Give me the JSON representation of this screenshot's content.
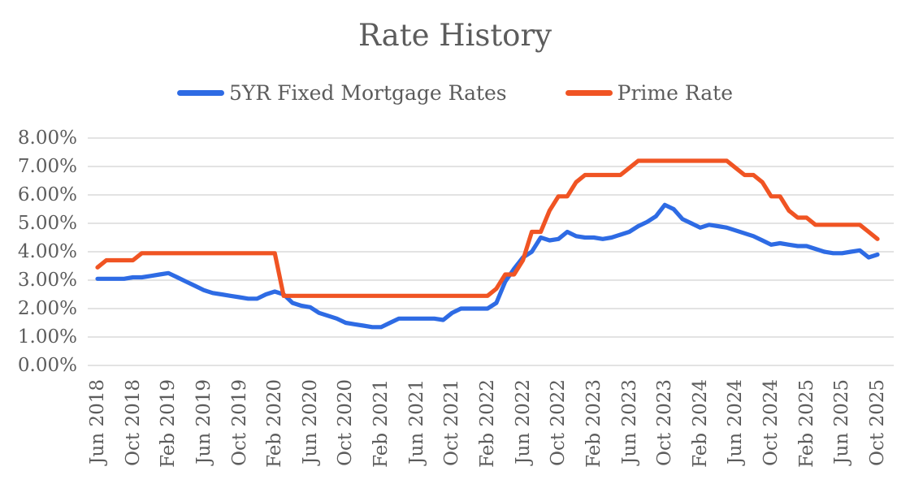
{
  "title": "Rate History",
  "text_color": "#5c5c5c",
  "grid_color": "#dadada",
  "chart_data": {
    "type": "line",
    "title": "Rate History",
    "grid": true,
    "legend_position": "top",
    "ylim": [
      0,
      8
    ],
    "y_ticks": [
      "0.00%",
      "1.00%",
      "2.00%",
      "3.00%",
      "4.00%",
      "5.00%",
      "6.00%",
      "7.00%",
      "8.00%"
    ],
    "tick_every": 4,
    "x": [
      "Jun 2018",
      "Jul 2018",
      "Aug 2018",
      "Sep 2018",
      "Oct 2018",
      "Nov 2018",
      "Dec 2018",
      "Jan 2019",
      "Feb 2019",
      "Mar 2019",
      "Apr 2019",
      "May 2019",
      "Jun 2019",
      "Jul 2019",
      "Aug 2019",
      "Sep 2019",
      "Oct 2019",
      "Nov 2019",
      "Dec 2019",
      "Jan 2020",
      "Feb 2020",
      "Mar 2020",
      "Apr 2020",
      "May 2020",
      "Jun 2020",
      "Jul 2020",
      "Aug 2020",
      "Sep 2020",
      "Oct 2020",
      "Nov 2020",
      "Dec 2020",
      "Jan 2021",
      "Feb 2021",
      "Mar 2021",
      "Apr 2021",
      "May 2021",
      "Jun 2021",
      "Jul 2021",
      "Aug 2021",
      "Sep 2021",
      "Oct 2021",
      "Nov 2021",
      "Dec 2021",
      "Jan 2022",
      "Feb 2022",
      "Mar 2022",
      "Apr 2022",
      "May 2022",
      "Jun 2022",
      "Jul 2022",
      "Aug 2022",
      "Sep 2022",
      "Oct 2022",
      "Nov 2022",
      "Dec 2022",
      "Jan 2023",
      "Feb 2023",
      "Mar 2023",
      "Apr 2023",
      "May 2023",
      "Jun 2023",
      "Jul 2023",
      "Aug 2023",
      "Sep 2023",
      "Oct 2023",
      "Nov 2023",
      "Dec 2023",
      "Jan 2024",
      "Feb 2024",
      "Mar 2024",
      "Apr 2024",
      "May 2024",
      "Jun 2024",
      "Jul 2024",
      "Aug 2024",
      "Sep 2024",
      "Oct 2024",
      "Nov 2024",
      "Dec 2024",
      "Jan 2025",
      "Feb 2025",
      "Mar 2025",
      "Apr 2025",
      "May 2025",
      "Jun 2025",
      "Jul 2025",
      "Aug 2025",
      "Sep 2025",
      "Oct 2025"
    ],
    "x_tick_labels": [
      "Jun 2018",
      "Oct 2018",
      "Feb 2019",
      "Jun 2019",
      "Oct 2019",
      "Feb 2020",
      "Jun 2020",
      "Oct 2020",
      "Feb 2021",
      "Jun 2021",
      "Oct 2021",
      "Feb 2022",
      "Jun 2022",
      "Oct 2022",
      "Feb 2023",
      "Jun 2023",
      "Oct 2023",
      "Feb 2024",
      "Jun 2024",
      "Oct 2024",
      "Feb 2025",
      "Jun 2025",
      "Oct 2025"
    ],
    "series": [
      {
        "name": "5YR Fixed Mortgage Rates",
        "color": "#2e6be4",
        "values": [
          3.05,
          3.05,
          3.05,
          3.05,
          3.1,
          3.1,
          3.15,
          3.2,
          3.25,
          3.1,
          2.95,
          2.8,
          2.65,
          2.55,
          2.5,
          2.45,
          2.4,
          2.35,
          2.35,
          2.5,
          2.6,
          2.5,
          2.2,
          2.1,
          2.05,
          1.85,
          1.75,
          1.65,
          1.5,
          1.45,
          1.4,
          1.35,
          1.35,
          1.5,
          1.65,
          1.65,
          1.65,
          1.65,
          1.65,
          1.6,
          1.85,
          2.0,
          2.0,
          2.0,
          2.0,
          2.2,
          2.95,
          3.4,
          3.8,
          4.0,
          4.5,
          4.4,
          4.45,
          4.7,
          4.55,
          4.5,
          4.5,
          4.45,
          4.5,
          4.6,
          4.7,
          4.9,
          5.05,
          5.25,
          5.65,
          5.5,
          5.15,
          5.0,
          4.85,
          4.95,
          4.9,
          4.85,
          4.75,
          4.65,
          4.55,
          4.4,
          4.25,
          4.3,
          4.25,
          4.2,
          4.2,
          4.1,
          4.0,
          3.95,
          3.95,
          4.0,
          4.05,
          3.8,
          3.9
        ]
      },
      {
        "name": "Prime Rate",
        "color": "#f05423",
        "values": [
          3.45,
          3.7,
          3.7,
          3.7,
          3.7,
          3.95,
          3.95,
          3.95,
          3.95,
          3.95,
          3.95,
          3.95,
          3.95,
          3.95,
          3.95,
          3.95,
          3.95,
          3.95,
          3.95,
          3.95,
          3.95,
          2.45,
          2.45,
          2.45,
          2.45,
          2.45,
          2.45,
          2.45,
          2.45,
          2.45,
          2.45,
          2.45,
          2.45,
          2.45,
          2.45,
          2.45,
          2.45,
          2.45,
          2.45,
          2.45,
          2.45,
          2.45,
          2.45,
          2.45,
          2.45,
          2.7,
          3.2,
          3.2,
          3.7,
          4.7,
          4.7,
          5.45,
          5.95,
          5.95,
          6.45,
          6.7,
          6.7,
          6.7,
          6.7,
          6.7,
          6.95,
          7.2,
          7.2,
          7.2,
          7.2,
          7.2,
          7.2,
          7.2,
          7.2,
          7.2,
          7.2,
          7.2,
          6.95,
          6.7,
          6.7,
          6.45,
          5.95,
          5.95,
          5.45,
          5.2,
          5.2,
          4.95,
          4.95,
          4.95,
          4.95,
          4.95,
          4.95,
          4.7,
          4.45
        ]
      }
    ]
  }
}
